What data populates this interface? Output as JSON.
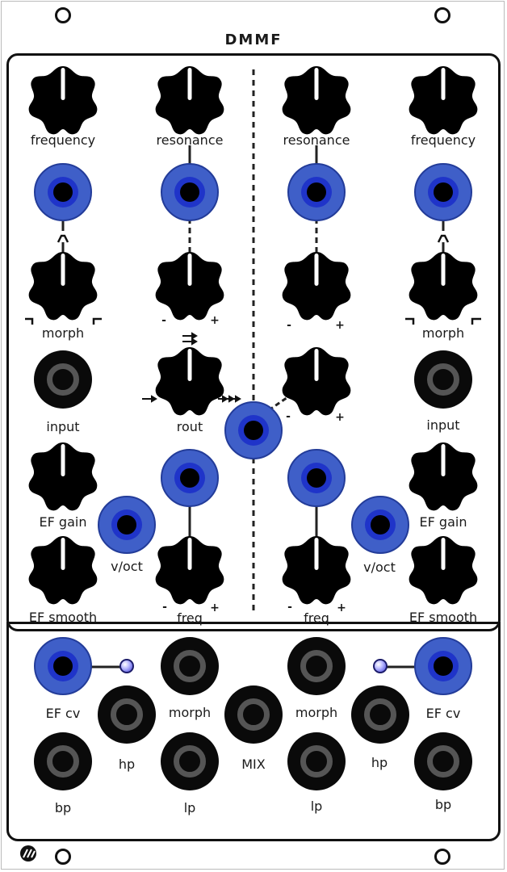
{
  "module": {
    "name": "DMMF"
  },
  "left": {
    "frequency_label": "frequency",
    "resonance_label": "resonance",
    "morph_label": "morph",
    "input_label": "input",
    "rout_label": "rout",
    "ef_gain_label": "EF gain",
    "voct_label": "v/oct",
    "ef_smooth_label": "EF smooth",
    "freq_label": "freq",
    "minus": "-",
    "plus": "+"
  },
  "right": {
    "frequency_label": "frequency",
    "resonance_label": "resonance",
    "morph_label": "morph",
    "input_label": "input",
    "ef_gain_label": "EF gain",
    "voct_label": "v/oct",
    "ef_smooth_label": "EF smooth",
    "freq_label": "freq",
    "minus": "-",
    "plus": "+"
  },
  "bottom": {
    "ef_cv_left": "EF cv",
    "ef_cv_right": "EF cv",
    "hp_left": "hp",
    "hp_right": "hp",
    "morph_left": "morph",
    "morph_right": "morph",
    "mix_label": "MIX",
    "bp_left": "bp",
    "bp_right": "bp",
    "lp_left": "lp",
    "lp_right": "lp"
  },
  "icons": {
    "rout_top": "double-right-arrow-icon",
    "rout_left": "single-right-arrow-icon",
    "rout_right": "triple-right-arrow-icon",
    "peak": "peak-icon",
    "morph_left_curve": "lowpass-shape-icon",
    "morph_right_curve": "highpass-shape-icon",
    "brand": "brand-logo-icon"
  },
  "colors": {
    "panel": "#ffffff",
    "ink": "#111111",
    "cv_jack": "#3f5fc8",
    "cv_jack_inner": "#1f34c9",
    "audio_ring": "#555555"
  }
}
